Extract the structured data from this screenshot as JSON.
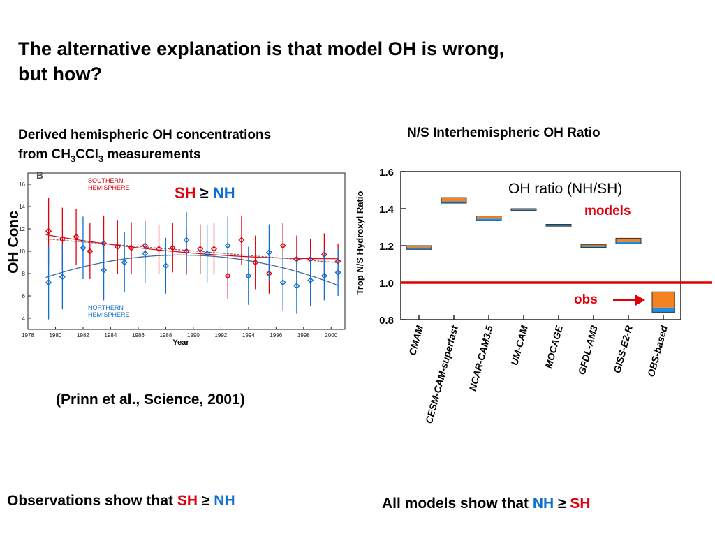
{
  "title": {
    "line1": "The alternative explanation is that model OH is wrong,",
    "line2": "but how?"
  },
  "left_caption": {
    "line1": "Derived hemispheric OH concentrations",
    "line2_prefix": "from CH",
    "sub1": "3",
    "mid": "CCl",
    "sub2": "3",
    "line2_suffix": " measurements"
  },
  "right_caption": "N/S Interhemispheric OH Ratio",
  "sh_nh_label": {
    "sh": "SH",
    "ge": " ≥ ",
    "nh": "NH"
  },
  "oh_conc_label": "OH Conc",
  "citation": "(Prinn et al., Science, 2001)",
  "bottom_left": {
    "prefix": "Observations show that ",
    "sh": "SH",
    "ge": " ≥ ",
    "nh": "NH"
  },
  "bottom_right": {
    "prefix": "All models show that ",
    "nh": "NH",
    "ge": " ≥ ",
    "sh": "SH"
  },
  "colors": {
    "red": "#e0000b",
    "blue": "#0f6fd0",
    "orange": "#f58220",
    "bar_blue": "#1e90e6",
    "obs_line": "#dd0000"
  },
  "chart_data": [
    {
      "type": "scatter",
      "panel_letter": "B",
      "xlabel": "Year",
      "ylabel": "",
      "xlim": [
        1978,
        2001
      ],
      "ylim": [
        3,
        17
      ],
      "x_ticks": [
        1978,
        1980,
        1982,
        1984,
        1986,
        1988,
        1990,
        1992,
        1994,
        1996,
        1998,
        2000
      ],
      "y_ticks": [
        4,
        6,
        8,
        10,
        12,
        14,
        16
      ],
      "annotations": [
        {
          "lines": [
            "SOUTHERN",
            "HEMISPHERE"
          ],
          "color": "red"
        },
        {
          "lines": [
            "NORTHERN",
            "HEMISPHERE"
          ],
          "color": "blue"
        }
      ],
      "series": [
        {
          "color": "red",
          "x": [
            1979.5,
            1980.5,
            1981.5,
            1982.5,
            1983.5,
            1984.5,
            1985.5,
            1986.5,
            1987.5,
            1988.5,
            1989.5,
            1990.5,
            1991.5,
            1992.5,
            1993.5,
            1994.5,
            1995.5,
            1996.5,
            1997.5,
            1998.5,
            1999.5,
            2000.5
          ],
          "y": [
            11.8,
            11.1,
            11.3,
            10.0,
            10.7,
            10.4,
            10.3,
            10.5,
            10.2,
            10.3,
            10.0,
            10.2,
            10.2,
            7.8,
            11.0,
            9.0,
            8.0,
            10.5,
            9.3,
            9.3,
            9.7,
            9.1
          ],
          "err": [
            3.0,
            2.8,
            2.5,
            2.5,
            2.5,
            2.4,
            2.3,
            2.2,
            2.2,
            2.2,
            2.1,
            2.2,
            2.3,
            2.1,
            2.2,
            2.4,
            1.8,
            2.0,
            2.1,
            1.8,
            1.9,
            1.6
          ]
        },
        {
          "color": "blue",
          "x": [
            1979.5,
            1980.5,
            1982.0,
            1983.5,
            1985.0,
            1986.5,
            1988.0,
            1989.5,
            1991.0,
            1992.5,
            1994.0,
            1995.5,
            1996.5,
            1997.5,
            1998.5,
            1999.5,
            2000.5
          ],
          "y": [
            7.2,
            7.7,
            10.3,
            8.3,
            9.0,
            9.8,
            8.7,
            11.0,
            9.8,
            10.5,
            7.8,
            9.9,
            7.2,
            6.9,
            7.4,
            7.8,
            8.1
          ],
          "err": [
            3.3,
            2.9,
            2.8,
            2.7,
            2.7,
            2.6,
            2.5,
            2.5,
            2.6,
            2.6,
            2.6,
            2.5,
            2.5,
            2.5,
            2.3,
            2.2,
            2.1
          ]
        }
      ]
    },
    {
      "type": "bar",
      "title": "OH ratio (NH/SH)",
      "ylabel": "Trop N/S Hydroxyl Ratio",
      "ylim": [
        0.8,
        1.6
      ],
      "y_ticks": [
        0.8,
        1.0,
        1.2,
        1.4,
        1.6
      ],
      "categories": [
        "CMAM",
        "CESM-CAM-superfast",
        "NCAR-CAM3.5",
        "UM-CAM",
        "MOCAGE",
        "GFDL-AM3",
        "GISS-E2-R",
        "OBS-based"
      ],
      "ranges": [
        [
          1.18,
          1.2
        ],
        [
          1.43,
          1.46
        ],
        [
          1.335,
          1.36
        ],
        [
          1.39,
          1.4
        ],
        [
          1.305,
          1.315
        ],
        [
          1.19,
          1.205
        ],
        [
          1.21,
          1.24
        ],
        [
          0.84,
          0.95
        ]
      ],
      "bar_split": [
        1.19,
        1.44,
        1.345,
        1.395,
        1.31,
        1.195,
        1.22,
        0.865
      ],
      "reference_line": 1.0,
      "annotations": [
        "models",
        "obs"
      ]
    }
  ]
}
